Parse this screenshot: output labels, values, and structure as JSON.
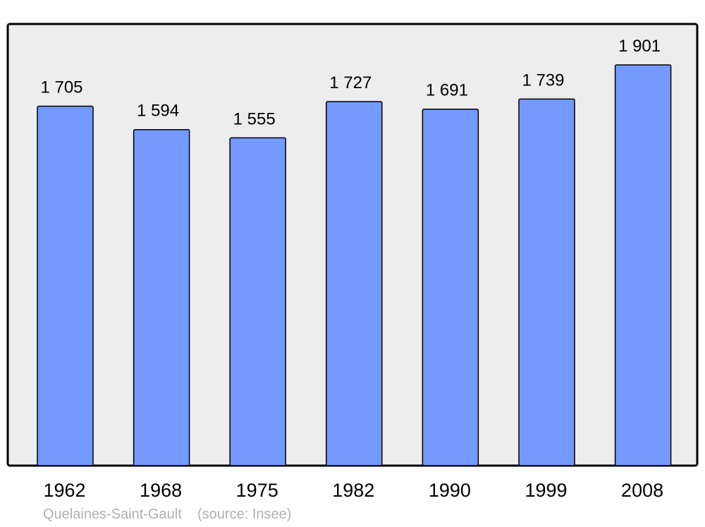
{
  "chart_data": {
    "type": "bar",
    "title": "",
    "xlabel": "",
    "ylabel": "",
    "categories": [
      "1962",
      "1968",
      "1975",
      "1982",
      "1990",
      "1999",
      "2008"
    ],
    "values": [
      1705,
      1594,
      1555,
      1727,
      1691,
      1739,
      1901
    ],
    "value_labels": [
      "1 705",
      "1 594",
      "1 555",
      "1 727",
      "1 691",
      "1 739",
      "1 901"
    ],
    "ylim": [
      0,
      2095
    ],
    "grid": false,
    "colors": {
      "bar": "#7499ff",
      "plot_background": "#ededed",
      "frame": "#000000",
      "footer_text": "#b0b0b0"
    }
  },
  "footer": {
    "place": "Quelaines-Saint-Gault",
    "source": "(source: Insee)"
  }
}
